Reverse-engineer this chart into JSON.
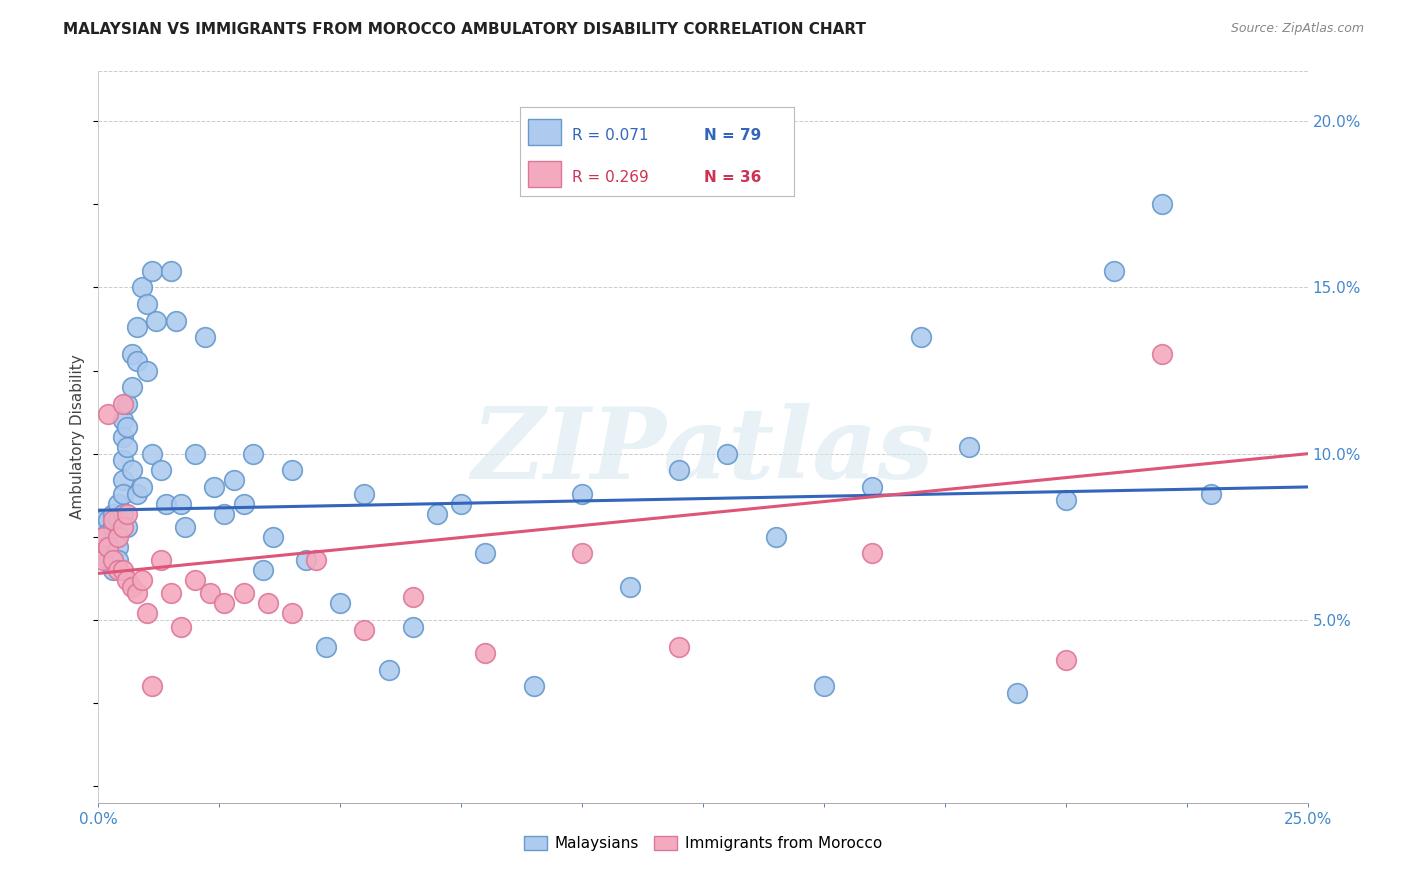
{
  "title": "MALAYSIAN VS IMMIGRANTS FROM MOROCCO AMBULATORY DISABILITY CORRELATION CHART",
  "source": "Source: ZipAtlas.com",
  "ylabel": "Ambulatory Disability",
  "ytick_vals": [
    0.05,
    0.1,
    0.15,
    0.2
  ],
  "xlim": [
    0.0,
    0.25
  ],
  "ylim": [
    -0.005,
    0.215
  ],
  "legend_blue_r": "R = 0.071",
  "legend_blue_n": "N = 79",
  "legend_pink_r": "R = 0.269",
  "legend_pink_n": "N = 36",
  "legend_blue_label": "Malaysians",
  "legend_pink_label": "Immigrants from Morocco",
  "blue_color": "#AECBEF",
  "pink_color": "#F4AABE",
  "blue_edge": "#6699CC",
  "pink_edge": "#DD7799",
  "blue_trend_color": "#3366BB",
  "pink_trend_color": "#DD5577",
  "watermark": "ZIPatlas",
  "trend_blue_start": 0.083,
  "trend_blue_end": 0.09,
  "trend_pink_start": 0.064,
  "trend_pink_end": 0.1,
  "blue_x": [
    0.001,
    0.001,
    0.001,
    0.002,
    0.002,
    0.002,
    0.002,
    0.003,
    0.003,
    0.003,
    0.003,
    0.004,
    0.004,
    0.004,
    0.004,
    0.004,
    0.005,
    0.005,
    0.005,
    0.005,
    0.005,
    0.005,
    0.006,
    0.006,
    0.006,
    0.006,
    0.007,
    0.007,
    0.007,
    0.008,
    0.008,
    0.008,
    0.009,
    0.009,
    0.01,
    0.01,
    0.011,
    0.011,
    0.012,
    0.013,
    0.014,
    0.015,
    0.016,
    0.017,
    0.018,
    0.02,
    0.022,
    0.024,
    0.026,
    0.028,
    0.03,
    0.032,
    0.034,
    0.036,
    0.04,
    0.043,
    0.047,
    0.05,
    0.055,
    0.06,
    0.065,
    0.07,
    0.075,
    0.08,
    0.09,
    0.1,
    0.11,
    0.12,
    0.13,
    0.14,
    0.15,
    0.16,
    0.17,
    0.18,
    0.19,
    0.2,
    0.21,
    0.22,
    0.23
  ],
  "blue_y": [
    0.08,
    0.075,
    0.07,
    0.08,
    0.076,
    0.072,
    0.068,
    0.082,
    0.078,
    0.074,
    0.065,
    0.085,
    0.08,
    0.076,
    0.072,
    0.068,
    0.11,
    0.105,
    0.098,
    0.092,
    0.088,
    0.082,
    0.115,
    0.108,
    0.102,
    0.078,
    0.13,
    0.12,
    0.095,
    0.138,
    0.128,
    0.088,
    0.15,
    0.09,
    0.145,
    0.125,
    0.155,
    0.1,
    0.14,
    0.095,
    0.085,
    0.155,
    0.14,
    0.085,
    0.078,
    0.1,
    0.135,
    0.09,
    0.082,
    0.092,
    0.085,
    0.1,
    0.065,
    0.075,
    0.095,
    0.068,
    0.042,
    0.055,
    0.088,
    0.035,
    0.048,
    0.082,
    0.085,
    0.07,
    0.03,
    0.088,
    0.06,
    0.095,
    0.1,
    0.075,
    0.03,
    0.09,
    0.135,
    0.102,
    0.028,
    0.086,
    0.155,
    0.175,
    0.088
  ],
  "pink_x": [
    0.001,
    0.001,
    0.002,
    0.002,
    0.003,
    0.003,
    0.004,
    0.004,
    0.005,
    0.005,
    0.005,
    0.006,
    0.006,
    0.007,
    0.008,
    0.009,
    0.01,
    0.011,
    0.013,
    0.015,
    0.017,
    0.02,
    0.023,
    0.026,
    0.03,
    0.035,
    0.04,
    0.045,
    0.055,
    0.065,
    0.08,
    0.1,
    0.12,
    0.16,
    0.2,
    0.22
  ],
  "pink_y": [
    0.075,
    0.068,
    0.112,
    0.072,
    0.08,
    0.068,
    0.075,
    0.065,
    0.115,
    0.078,
    0.065,
    0.082,
    0.062,
    0.06,
    0.058,
    0.062,
    0.052,
    0.03,
    0.068,
    0.058,
    0.048,
    0.062,
    0.058,
    0.055,
    0.058,
    0.055,
    0.052,
    0.068,
    0.047,
    0.057,
    0.04,
    0.07,
    0.042,
    0.07,
    0.038,
    0.13
  ]
}
